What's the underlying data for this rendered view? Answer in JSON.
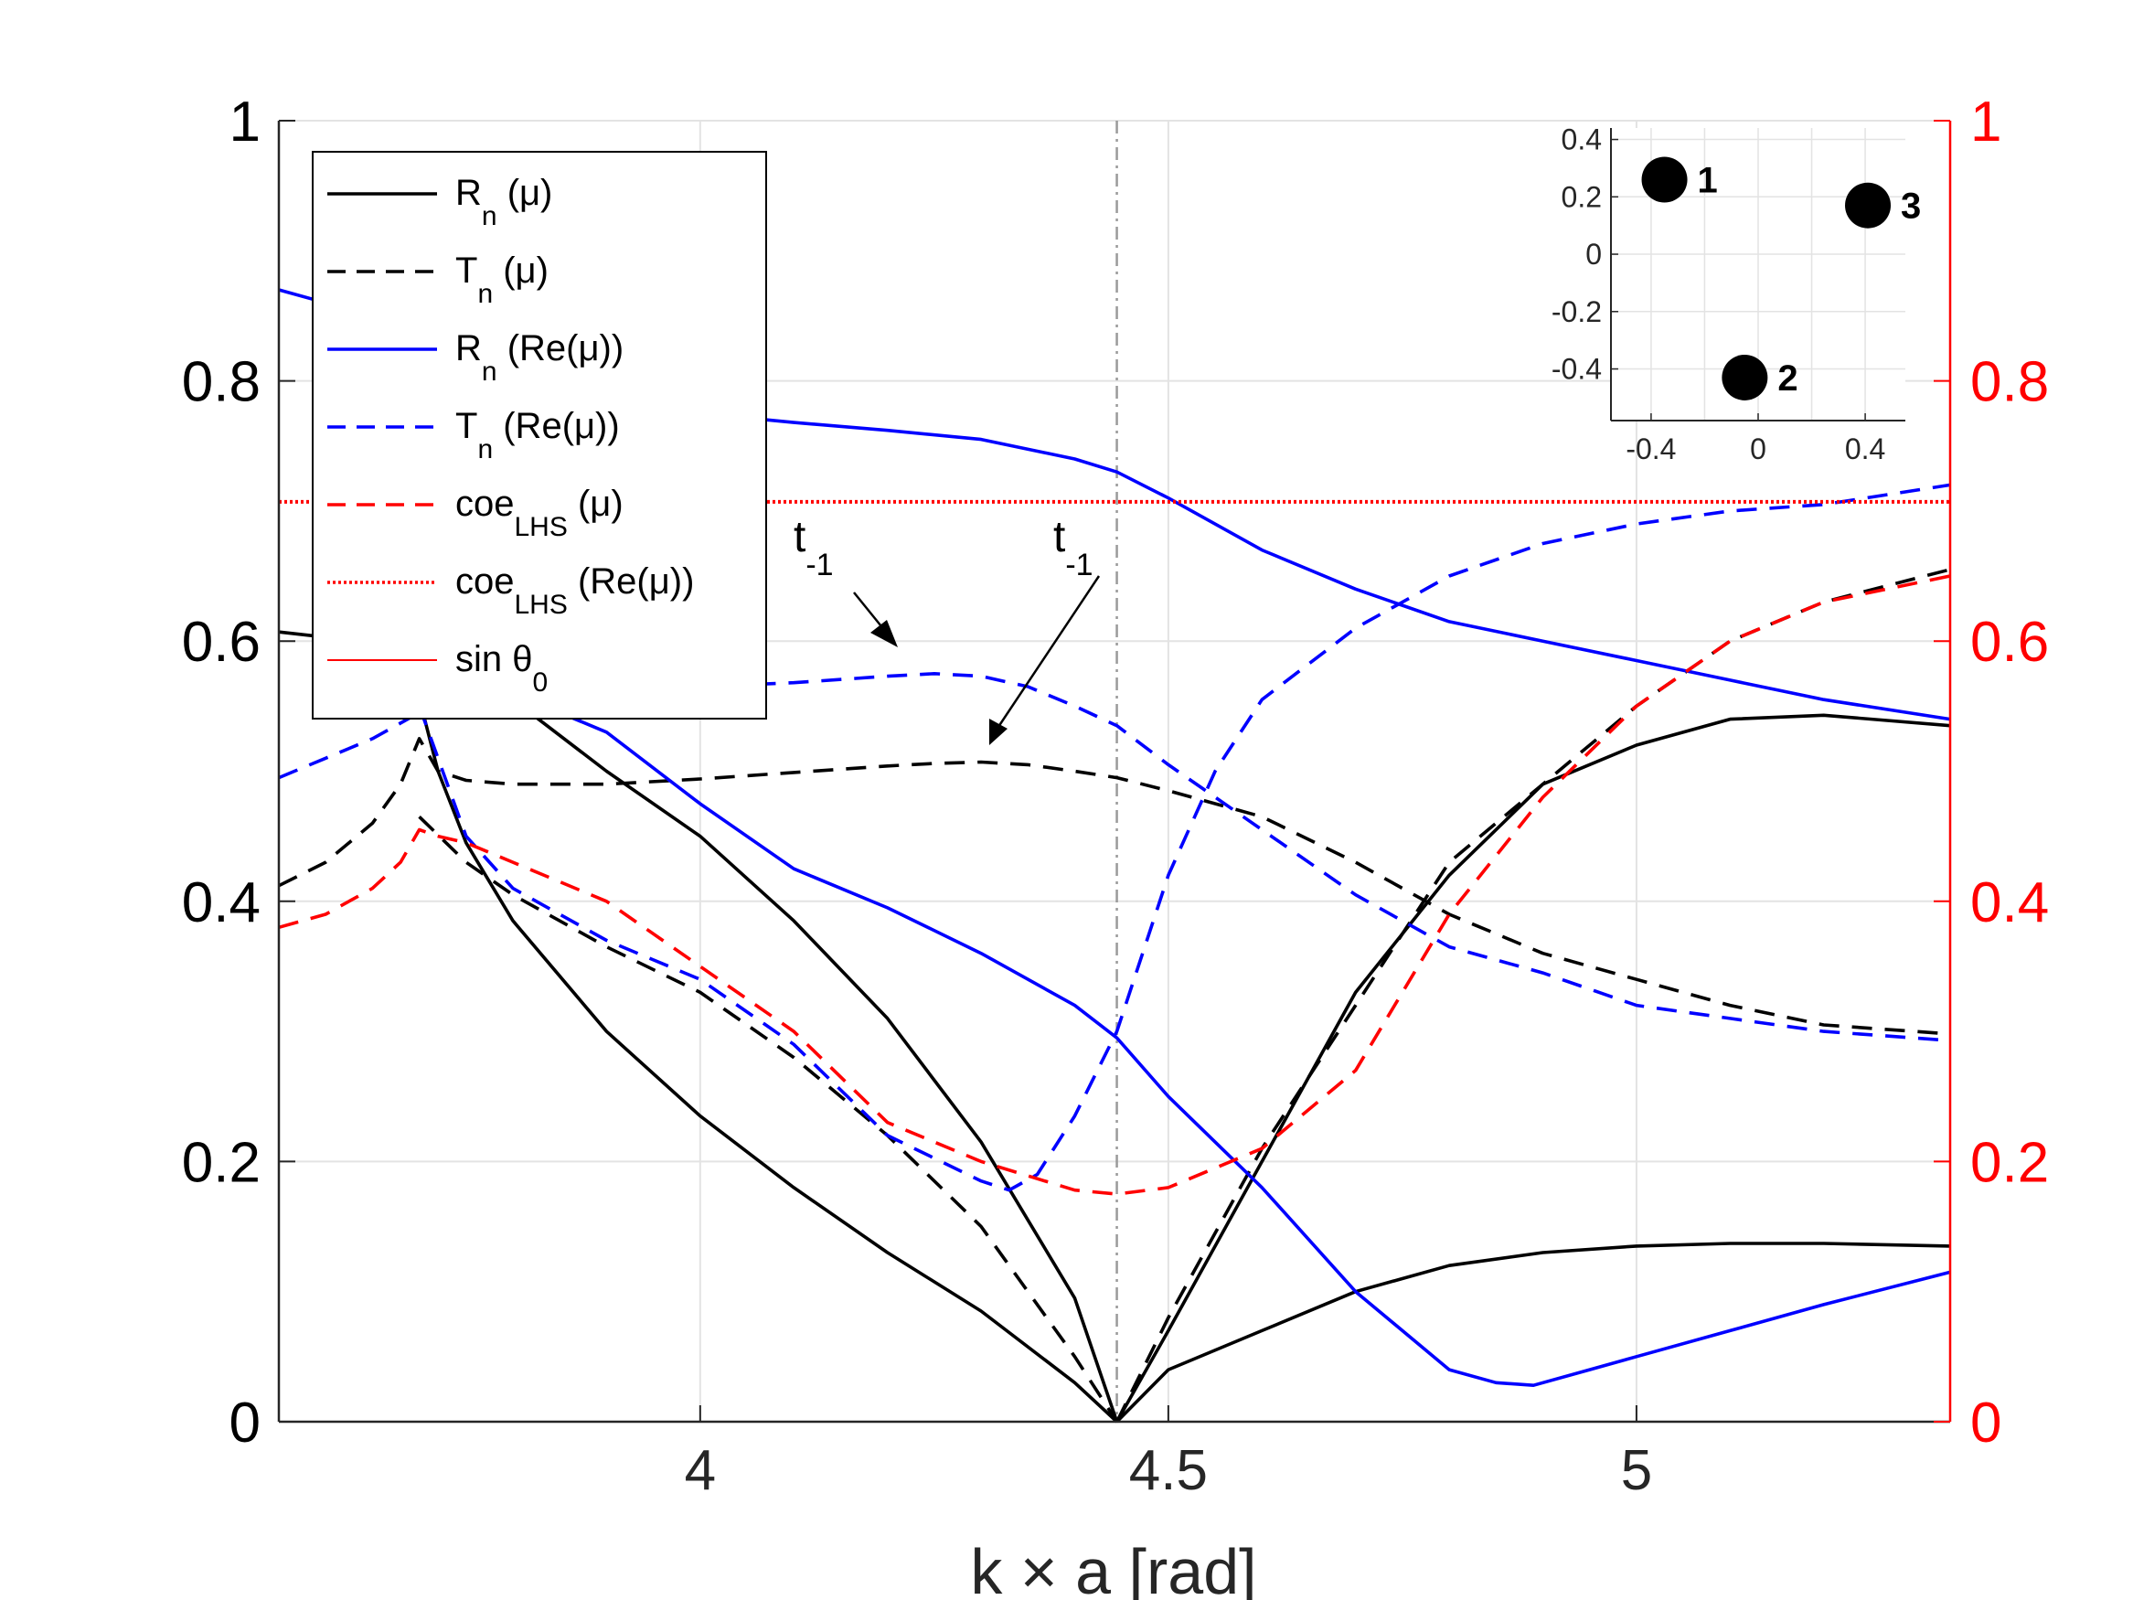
{
  "chart_data": [
    {
      "type": "line",
      "xlabel": "k × a [rad]",
      "ylabel": "",
      "xlim": [
        3.55,
        5.335
      ],
      "ylim": [
        0,
        1
      ],
      "y2lim": [
        0,
        1
      ],
      "grid": true,
      "x_ticks": [
        "4",
        "4.5",
        "5"
      ],
      "y_ticks": [
        "0",
        "0.2",
        "0.4",
        "0.6",
        "0.8",
        "1"
      ],
      "y2_ticks": [
        "0",
        "0.2",
        "0.4",
        "0.6",
        "0.8",
        "1"
      ],
      "y2_color": "#ff0000",
      "vline": 4.445,
      "legend": {
        "placement": "top-left",
        "entries": [
          {
            "base": "R",
            "sub": "n",
            "rest": " (μ)"
          },
          {
            "base": "T",
            "sub": "n",
            "rest": " (μ)"
          },
          {
            "base": "R",
            "sub": "n",
            "rest": " (Re(μ))"
          },
          {
            "base": "T",
            "sub": "n",
            "rest": " (Re(μ))"
          },
          {
            "base": "coe",
            "sub": "LHS",
            "rest": " (μ)"
          },
          {
            "base": "coe",
            "sub": "LHS",
            "rest": " (Re(μ))"
          },
          {
            "base": "sin θ",
            "sub": "0",
            "rest": ""
          }
        ]
      },
      "annotations": [
        {
          "base": "t",
          "sub": "-1"
        },
        {
          "base": "t",
          "sub": "-1"
        }
      ],
      "series": [
        {
          "name": "R_n (μ) mode 1",
          "color": "#000000",
          "dash": "solid",
          "axis": "left",
          "x": [
            3.55,
            3.6,
            3.65,
            3.7,
            3.75,
            3.8,
            3.9,
            4.0,
            4.1,
            4.2,
            4.3,
            4.4,
            4.445
          ],
          "y": [
            0.607,
            0.603,
            0.599,
            0.595,
            0.585,
            0.555,
            0.5,
            0.45,
            0.385,
            0.31,
            0.215,
            0.095,
            0.0
          ]
        },
        {
          "name": "R_n (μ) mode 2",
          "color": "#000000",
          "dash": "solid",
          "axis": "left",
          "x": [
            3.695,
            3.72,
            3.75,
            3.8,
            3.9,
            4.0,
            4.1,
            4.2,
            4.3,
            4.4,
            4.445
          ],
          "y": [
            0.57,
            0.5,
            0.445,
            0.385,
            0.3,
            0.235,
            0.18,
            0.13,
            0.085,
            0.03,
            0.0
          ]
        },
        {
          "name": "R_n (μ) mode 3",
          "color": "#000000",
          "dash": "solid",
          "axis": "left",
          "x": [
            4.445,
            4.5,
            4.6,
            4.7,
            4.8,
            4.9,
            5.0,
            5.1,
            5.2,
            5.335
          ],
          "y": [
            0.0,
            0.07,
            0.2,
            0.33,
            0.42,
            0.49,
            0.52,
            0.54,
            0.543,
            0.535
          ]
        },
        {
          "name": "R_n (μ) mode 4",
          "color": "#000000",
          "dash": "solid",
          "axis": "left",
          "x": [
            4.445,
            4.5,
            4.6,
            4.7,
            4.8,
            4.9,
            5.0,
            5.1,
            5.2,
            5.335
          ],
          "y": [
            0.0,
            0.04,
            0.07,
            0.1,
            0.12,
            0.13,
            0.135,
            0.137,
            0.137,
            0.135
          ]
        },
        {
          "name": "T_n (μ) mode 1",
          "color": "#000000",
          "dash": "dashed",
          "axis": "left",
          "x": [
            3.55,
            3.6,
            3.65,
            3.68,
            3.7,
            3.72,
            3.75,
            3.8,
            3.9,
            4.0,
            4.1,
            4.2,
            4.25,
            4.3,
            4.35,
            4.4,
            4.445,
            4.5,
            4.6,
            4.7,
            4.8,
            4.9,
            5.0,
            5.1,
            5.2,
            5.335
          ],
          "y": [
            0.412,
            0.43,
            0.46,
            0.49,
            0.525,
            0.5,
            0.493,
            0.49,
            0.49,
            0.494,
            0.499,
            0.504,
            0.506,
            0.507,
            0.505,
            0.5,
            0.495,
            0.485,
            0.465,
            0.43,
            0.39,
            0.36,
            0.34,
            0.32,
            0.305,
            0.298
          ]
        },
        {
          "name": "T_n (μ) mode 2",
          "color": "#000000",
          "dash": "dashed",
          "axis": "left",
          "x": [
            3.7,
            3.75,
            3.8,
            3.9,
            4.0,
            4.1,
            4.2,
            4.3,
            4.35,
            4.4,
            4.445
          ],
          "y": [
            0.465,
            0.43,
            0.405,
            0.365,
            0.33,
            0.28,
            0.22,
            0.15,
            0.1,
            0.05,
            0.0
          ]
        },
        {
          "name": "T_n (μ) mode 3",
          "color": "#000000",
          "dash": "dashed",
          "axis": "left",
          "x": [
            4.445,
            4.5,
            4.6,
            4.7,
            4.8,
            4.9,
            5.0,
            5.1,
            5.2,
            5.335
          ],
          "y": [
            0.0,
            0.08,
            0.21,
            0.32,
            0.43,
            0.49,
            0.55,
            0.6,
            0.63,
            0.655
          ]
        },
        {
          "name": "R_n (Re(μ)) mode 1",
          "color": "#0000ff",
          "dash": "solid",
          "axis": "left",
          "x": [
            3.55,
            3.6,
            3.65,
            3.7,
            3.75,
            3.8,
            3.9,
            4.0,
            4.1,
            4.2,
            4.3,
            4.4,
            4.445,
            4.5,
            4.6,
            4.7,
            4.8,
            4.9,
            5.0,
            5.1,
            5.2,
            5.335
          ],
          "y": [
            0.87,
            0.86,
            0.845,
            0.83,
            0.815,
            0.8,
            0.785,
            0.775,
            0.768,
            0.762,
            0.755,
            0.74,
            0.73,
            0.71,
            0.67,
            0.64,
            0.615,
            0.6,
            0.585,
            0.57,
            0.555,
            0.54
          ]
        },
        {
          "name": "R_n (Re(μ)) mode 2",
          "color": "#0000ff",
          "dash": "solid",
          "axis": "left",
          "x": [
            3.7,
            3.75,
            3.8,
            3.9,
            4.0,
            4.1,
            4.2,
            4.3,
            4.4,
            4.445,
            4.5,
            4.6,
            4.7,
            4.8,
            4.85,
            4.89,
            4.95,
            5.0,
            5.1,
            5.2,
            5.335
          ],
          "y": [
            0.56,
            0.56,
            0.56,
            0.53,
            0.475,
            0.425,
            0.395,
            0.36,
            0.32,
            0.295,
            0.25,
            0.18,
            0.1,
            0.04,
            0.03,
            0.028,
            0.04,
            0.05,
            0.07,
            0.09,
            0.115
          ]
        },
        {
          "name": "T_n (Re(μ)) mode 1",
          "color": "#0000ff",
          "dash": "dashed",
          "axis": "left",
          "x": [
            3.55,
            3.6,
            3.65,
            3.7,
            3.75,
            3.8,
            3.9,
            4.0,
            4.1,
            4.2,
            4.25,
            4.3,
            4.35,
            4.4,
            4.445,
            4.5,
            4.6,
            4.7,
            4.8,
            4.9,
            5.0,
            5.1,
            5.2,
            5.335
          ],
          "y": [
            0.495,
            0.51,
            0.525,
            0.545,
            0.555,
            0.56,
            0.563,
            0.565,
            0.568,
            0.573,
            0.575,
            0.573,
            0.565,
            0.55,
            0.535,
            0.505,
            0.455,
            0.405,
            0.365,
            0.345,
            0.32,
            0.31,
            0.3,
            0.293
          ]
        },
        {
          "name": "T_n (Re(μ)) mode 2",
          "color": "#0000ff",
          "dash": "dashed",
          "axis": "left",
          "x": [
            3.7,
            3.75,
            3.8,
            3.9,
            4.0,
            4.1,
            4.2,
            4.3,
            4.33,
            4.36,
            4.4,
            4.445,
            4.5,
            4.55,
            4.6,
            4.7,
            4.8,
            4.9,
            5.0,
            5.1,
            5.2,
            5.335
          ],
          "y": [
            0.55,
            0.45,
            0.41,
            0.37,
            0.34,
            0.29,
            0.22,
            0.185,
            0.178,
            0.19,
            0.235,
            0.3,
            0.42,
            0.5,
            0.555,
            0.61,
            0.65,
            0.675,
            0.69,
            0.7,
            0.705,
            0.72
          ]
        },
        {
          "name": "coe_LHS (μ)",
          "color": "#ff0000",
          "dash": "dashed",
          "axis": "right",
          "x": [
            3.55,
            3.6,
            3.65,
            3.68,
            3.7,
            3.72,
            3.75,
            3.8,
            3.9,
            4.0,
            4.1,
            4.2,
            4.3,
            4.4,
            4.445,
            4.5,
            4.6,
            4.7,
            4.8,
            4.9,
            5.0,
            5.1,
            5.2,
            5.335
          ],
          "y": [
            0.38,
            0.39,
            0.41,
            0.43,
            0.455,
            0.45,
            0.445,
            0.43,
            0.4,
            0.35,
            0.3,
            0.23,
            0.2,
            0.178,
            0.175,
            0.18,
            0.21,
            0.27,
            0.39,
            0.48,
            0.55,
            0.6,
            0.63,
            0.65
          ]
        },
        {
          "name": "coe_LHS (Re(μ))",
          "color": "#ff0000",
          "dash": "dotted",
          "axis": "right",
          "x": [
            3.55,
            5.335
          ],
          "y": [
            0.707,
            0.707
          ]
        }
      ]
    },
    {
      "type": "scatter",
      "title": "",
      "xlim": [
        -0.55,
        0.55
      ],
      "ylim": [
        -0.58,
        0.44
      ],
      "x_ticks": [
        "-0.4",
        "0",
        "0.4"
      ],
      "y_ticks": [
        "0.4",
        "0.2",
        "0",
        "-0.2",
        "-0.4"
      ],
      "points": [
        {
          "label": "1",
          "x": -0.35,
          "y": 0.26
        },
        {
          "label": "2",
          "x": -0.05,
          "y": -0.43
        },
        {
          "label": "3",
          "x": 0.41,
          "y": 0.17
        }
      ]
    }
  ]
}
